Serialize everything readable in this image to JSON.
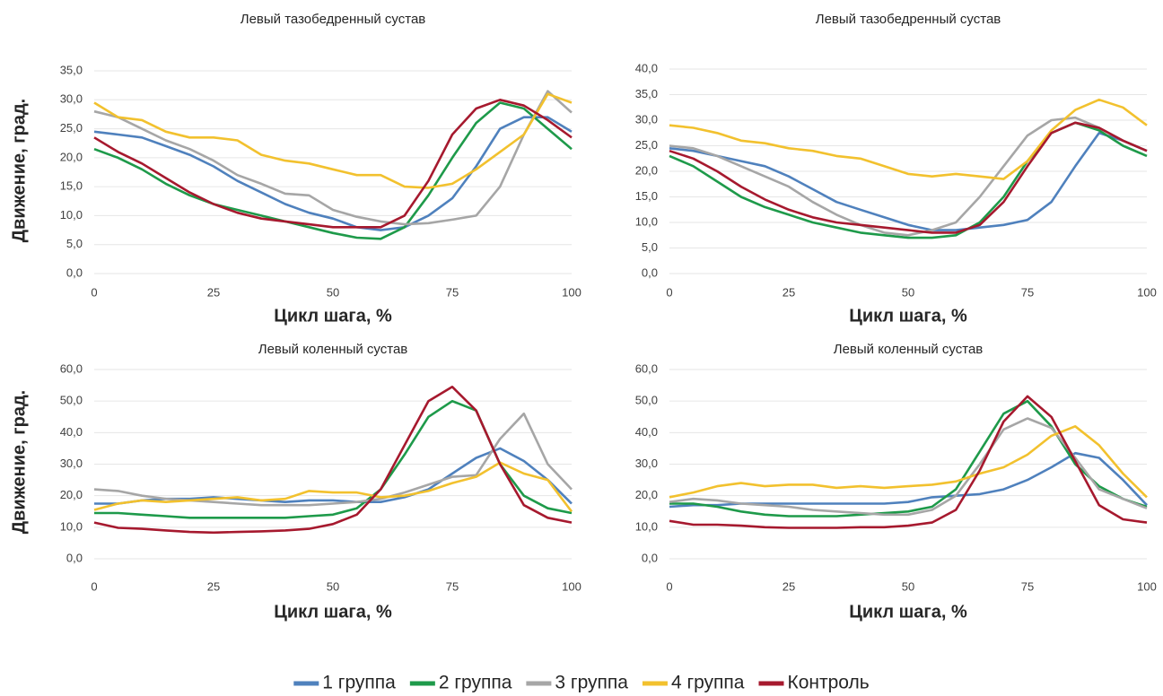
{
  "chart_data": [
    {
      "type": "line",
      "title": "Левый тазобедренный сустав",
      "xlabel": "Цикл шага, %",
      "ylabel": "Движение, град.",
      "x": [
        0,
        5,
        10,
        15,
        20,
        25,
        30,
        35,
        40,
        45,
        50,
        55,
        60,
        65,
        70,
        75,
        80,
        85,
        90,
        95,
        100
      ],
      "xlim": [
        0,
        100
      ],
      "xticks": [
        0,
        25,
        50,
        75,
        100
      ],
      "ylim": [
        0,
        35
      ],
      "yticks": [
        {
          "value": 0,
          "label": "0,0"
        },
        {
          "value": 5,
          "label": "5,0"
        },
        {
          "value": 10,
          "label": "10,0"
        },
        {
          "value": 15,
          "label": "15,0"
        },
        {
          "value": 20,
          "label": "20,0"
        },
        {
          "value": 25,
          "label": "25,0"
        },
        {
          "value": 30,
          "label": "30,0"
        },
        {
          "value": 35,
          "label": "35,0"
        }
      ],
      "grid": true,
      "series": [
        {
          "name": "1 группа",
          "color": "#4f81bd",
          "values": [
            24.5,
            24,
            23.5,
            22,
            20.5,
            18.5,
            16,
            14,
            12,
            10.5,
            9.5,
            8,
            7.5,
            8,
            10,
            13,
            18.5,
            25,
            27,
            27,
            24.5
          ]
        },
        {
          "name": "2 группа",
          "color": "#1e9a4a",
          "values": [
            21.5,
            20,
            18,
            15.5,
            13.5,
            12,
            11,
            10,
            9,
            8,
            7,
            6.2,
            6,
            8,
            13.5,
            20,
            26,
            29.5,
            28.5,
            25,
            21.5
          ]
        },
        {
          "name": "3 группа",
          "color": "#a6a6a6",
          "values": [
            28,
            27,
            25,
            23,
            21.5,
            19.5,
            17,
            15.5,
            13.8,
            13.5,
            11,
            9.8,
            9,
            8.5,
            8.7,
            9.3,
            10,
            15,
            24,
            31.5,
            27.8
          ]
        },
        {
          "name": "4 группа",
          "color": "#f2c12e",
          "values": [
            29.5,
            27,
            26.5,
            24.5,
            23.5,
            23.5,
            23,
            20.5,
            19.5,
            19,
            18,
            17,
            17,
            15,
            14.8,
            15.5,
            18,
            21,
            24,
            31,
            29.5
          ]
        },
        {
          "name": "Контроль",
          "color": "#a6192e",
          "values": [
            23.5,
            21,
            19,
            16.5,
            14,
            12,
            10.5,
            9.5,
            9,
            8.5,
            8,
            8,
            8,
            10,
            16,
            24,
            28.5,
            30,
            29,
            26.5,
            23.5
          ]
        }
      ]
    },
    {
      "type": "line",
      "title": "Левый тазобедренный сустав",
      "xlabel": "Цикл шага, %",
      "x": [
        0,
        5,
        10,
        15,
        20,
        25,
        30,
        35,
        40,
        45,
        50,
        55,
        60,
        65,
        70,
        75,
        80,
        85,
        90,
        95,
        100
      ],
      "xlim": [
        0,
        100
      ],
      "xticks": [
        0,
        25,
        50,
        75,
        100
      ],
      "ylim": [
        0,
        40
      ],
      "yticks": [
        {
          "value": 0,
          "label": "0,0"
        },
        {
          "value": 5,
          "label": "5,0"
        },
        {
          "value": 10,
          "label": "10,0"
        },
        {
          "value": 15,
          "label": "15,0"
        },
        {
          "value": 20,
          "label": "20,0"
        },
        {
          "value": 25,
          "label": "25,0"
        },
        {
          "value": 30,
          "label": "30,0"
        },
        {
          "value": 35,
          "label": "35,0"
        },
        {
          "value": 40,
          "label": "40,0"
        }
      ],
      "grid": true,
      "series": [
        {
          "name": "1 группа",
          "color": "#4f81bd",
          "values": [
            24.5,
            24,
            23,
            22,
            21,
            19,
            16.5,
            14,
            12.5,
            11,
            9.5,
            8.5,
            8.5,
            9,
            9.5,
            10.5,
            14,
            21,
            27.5,
            26,
            24
          ]
        },
        {
          "name": "2 группа",
          "color": "#1e9a4a",
          "values": [
            23,
            21,
            18,
            15,
            13,
            11.5,
            10,
            9,
            8,
            7.5,
            7,
            7,
            7.5,
            10,
            15,
            22,
            27.5,
            29.5,
            28,
            25,
            23
          ]
        },
        {
          "name": "3 группа",
          "color": "#a6a6a6",
          "values": [
            25,
            24.5,
            23,
            21,
            19,
            17,
            14,
            11.5,
            9.5,
            8,
            7.5,
            8.5,
            10,
            15,
            21,
            27,
            30,
            30.5,
            28.5,
            26,
            24
          ]
        },
        {
          "name": "4 группа",
          "color": "#f2c12e",
          "values": [
            29,
            28.5,
            27.5,
            26,
            25.5,
            24.5,
            24,
            23,
            22.5,
            21,
            19.5,
            19,
            19.5,
            19,
            18.5,
            22,
            28,
            32,
            34,
            32.5,
            29
          ]
        },
        {
          "name": "Контроль",
          "color": "#a6192e",
          "values": [
            24,
            22.5,
            20,
            17,
            14.5,
            12.5,
            11,
            10,
            9.5,
            9,
            8.5,
            8,
            8,
            9.5,
            14,
            21,
            27.5,
            29.5,
            28.5,
            26,
            24
          ]
        }
      ]
    },
    {
      "type": "line",
      "title": "Левый коленный сустав",
      "xlabel": "Цикл шага, %",
      "ylabel": "Движение, град.",
      "x": [
        0,
        5,
        10,
        15,
        20,
        25,
        30,
        35,
        40,
        45,
        50,
        55,
        60,
        65,
        70,
        75,
        80,
        85,
        90,
        95,
        100
      ],
      "xlim": [
        0,
        100
      ],
      "xticks": [
        0,
        25,
        50,
        75,
        100
      ],
      "ylim": [
        0,
        60
      ],
      "yticks": [
        {
          "value": 0,
          "label": "0,0"
        },
        {
          "value": 10,
          "label": "10,0"
        },
        {
          "value": 20,
          "label": "20,0"
        },
        {
          "value": 30,
          "label": "30,0"
        },
        {
          "value": 40,
          "label": "40,0"
        },
        {
          "value": 50,
          "label": "50,0"
        },
        {
          "value": 60,
          "label": "60,0"
        }
      ],
      "grid": true,
      "series": [
        {
          "name": "1 группа",
          "color": "#4f81bd",
          "values": [
            17.5,
            17.5,
            18.5,
            19,
            19,
            19.5,
            19,
            18.5,
            18,
            18.5,
            18.5,
            18,
            18,
            19.5,
            22,
            27,
            32,
            35,
            31,
            25,
            17.5
          ]
        },
        {
          "name": "2 группа",
          "color": "#1e9a4a",
          "values": [
            14.5,
            14.5,
            14,
            13.5,
            13,
            13,
            13,
            13,
            13,
            13.5,
            14,
            16,
            22,
            33,
            45,
            50,
            47,
            30,
            20,
            16,
            14.5
          ]
        },
        {
          "name": "3 группа",
          "color": "#a6a6a6",
          "values": [
            22,
            21.5,
            20,
            19,
            18.5,
            18,
            17.5,
            17,
            17,
            17,
            17.5,
            18,
            19,
            21,
            23.5,
            26,
            26.5,
            38,
            46,
            30,
            22
          ]
        },
        {
          "name": "4 группа",
          "color": "#f2c12e",
          "values": [
            15.5,
            17.5,
            18.5,
            18,
            18.5,
            19,
            19.5,
            18.5,
            19,
            21.5,
            21,
            21,
            19.5,
            20,
            21.5,
            24,
            26,
            30.5,
            27,
            25,
            15
          ]
        },
        {
          "name": "Контроль",
          "color": "#a6192e",
          "values": [
            11.5,
            9.8,
            9.5,
            9,
            8.5,
            8.3,
            8.5,
            8.7,
            9,
            9.5,
            11,
            14,
            22,
            36,
            50,
            54.5,
            47,
            30,
            17,
            13,
            11.5
          ]
        }
      ]
    },
    {
      "type": "line",
      "title": "Левый коленный сустав",
      "xlabel": "Цикл шага, %",
      "x": [
        0,
        5,
        10,
        15,
        20,
        25,
        30,
        35,
        40,
        45,
        50,
        55,
        60,
        65,
        70,
        75,
        80,
        85,
        90,
        95,
        100
      ],
      "xlim": [
        0,
        100
      ],
      "xticks": [
        0,
        25,
        50,
        75,
        100
      ],
      "ylim": [
        0,
        60
      ],
      "yticks": [
        {
          "value": 0,
          "label": "0,0"
        },
        {
          "value": 10,
          "label": "10,0"
        },
        {
          "value": 20,
          "label": "20,0"
        },
        {
          "value": 30,
          "label": "30,0"
        },
        {
          "value": 40,
          "label": "40,0"
        },
        {
          "value": 50,
          "label": "50,0"
        },
        {
          "value": 60,
          "label": "60,0"
        }
      ],
      "grid": true,
      "series": [
        {
          "name": "1 группа",
          "color": "#4f81bd",
          "values": [
            16.5,
            17,
            17,
            17.5,
            17.5,
            17.5,
            17.5,
            17.5,
            17.5,
            17.5,
            18,
            19.5,
            20,
            20.5,
            22,
            25,
            29,
            33.5,
            32,
            25,
            17
          ]
        },
        {
          "name": "2 группа",
          "color": "#1e9a4a",
          "values": [
            17.5,
            17.5,
            16.5,
            15,
            14,
            13.5,
            13.5,
            13.5,
            14,
            14.5,
            15,
            16.5,
            22,
            34,
            46,
            50,
            42,
            30,
            23,
            19,
            16.5
          ]
        },
        {
          "name": "3 группа",
          "color": "#a6a6a6",
          "values": [
            18,
            19,
            18.5,
            17.5,
            17,
            16.5,
            15.5,
            15,
            14.5,
            14,
            14,
            15.5,
            20,
            30,
            41,
            44.5,
            41.5,
            32,
            22,
            19,
            16
          ]
        },
        {
          "name": "4 группа",
          "color": "#f2c12e",
          "values": [
            19.5,
            21,
            23,
            24,
            23,
            23.5,
            23.5,
            22.5,
            23,
            22.5,
            23,
            23.5,
            24.5,
            27,
            29,
            33,
            39,
            42,
            36,
            27,
            19.5
          ]
        },
        {
          "name": "Контроль",
          "color": "#a6192e",
          "values": [
            12,
            10.8,
            10.8,
            10.5,
            10,
            9.8,
            9.8,
            9.8,
            10,
            10,
            10.5,
            11.5,
            15.5,
            28,
            43.5,
            51.5,
            45,
            31,
            17,
            12.5,
            11.5
          ]
        }
      ]
    }
  ]
}
